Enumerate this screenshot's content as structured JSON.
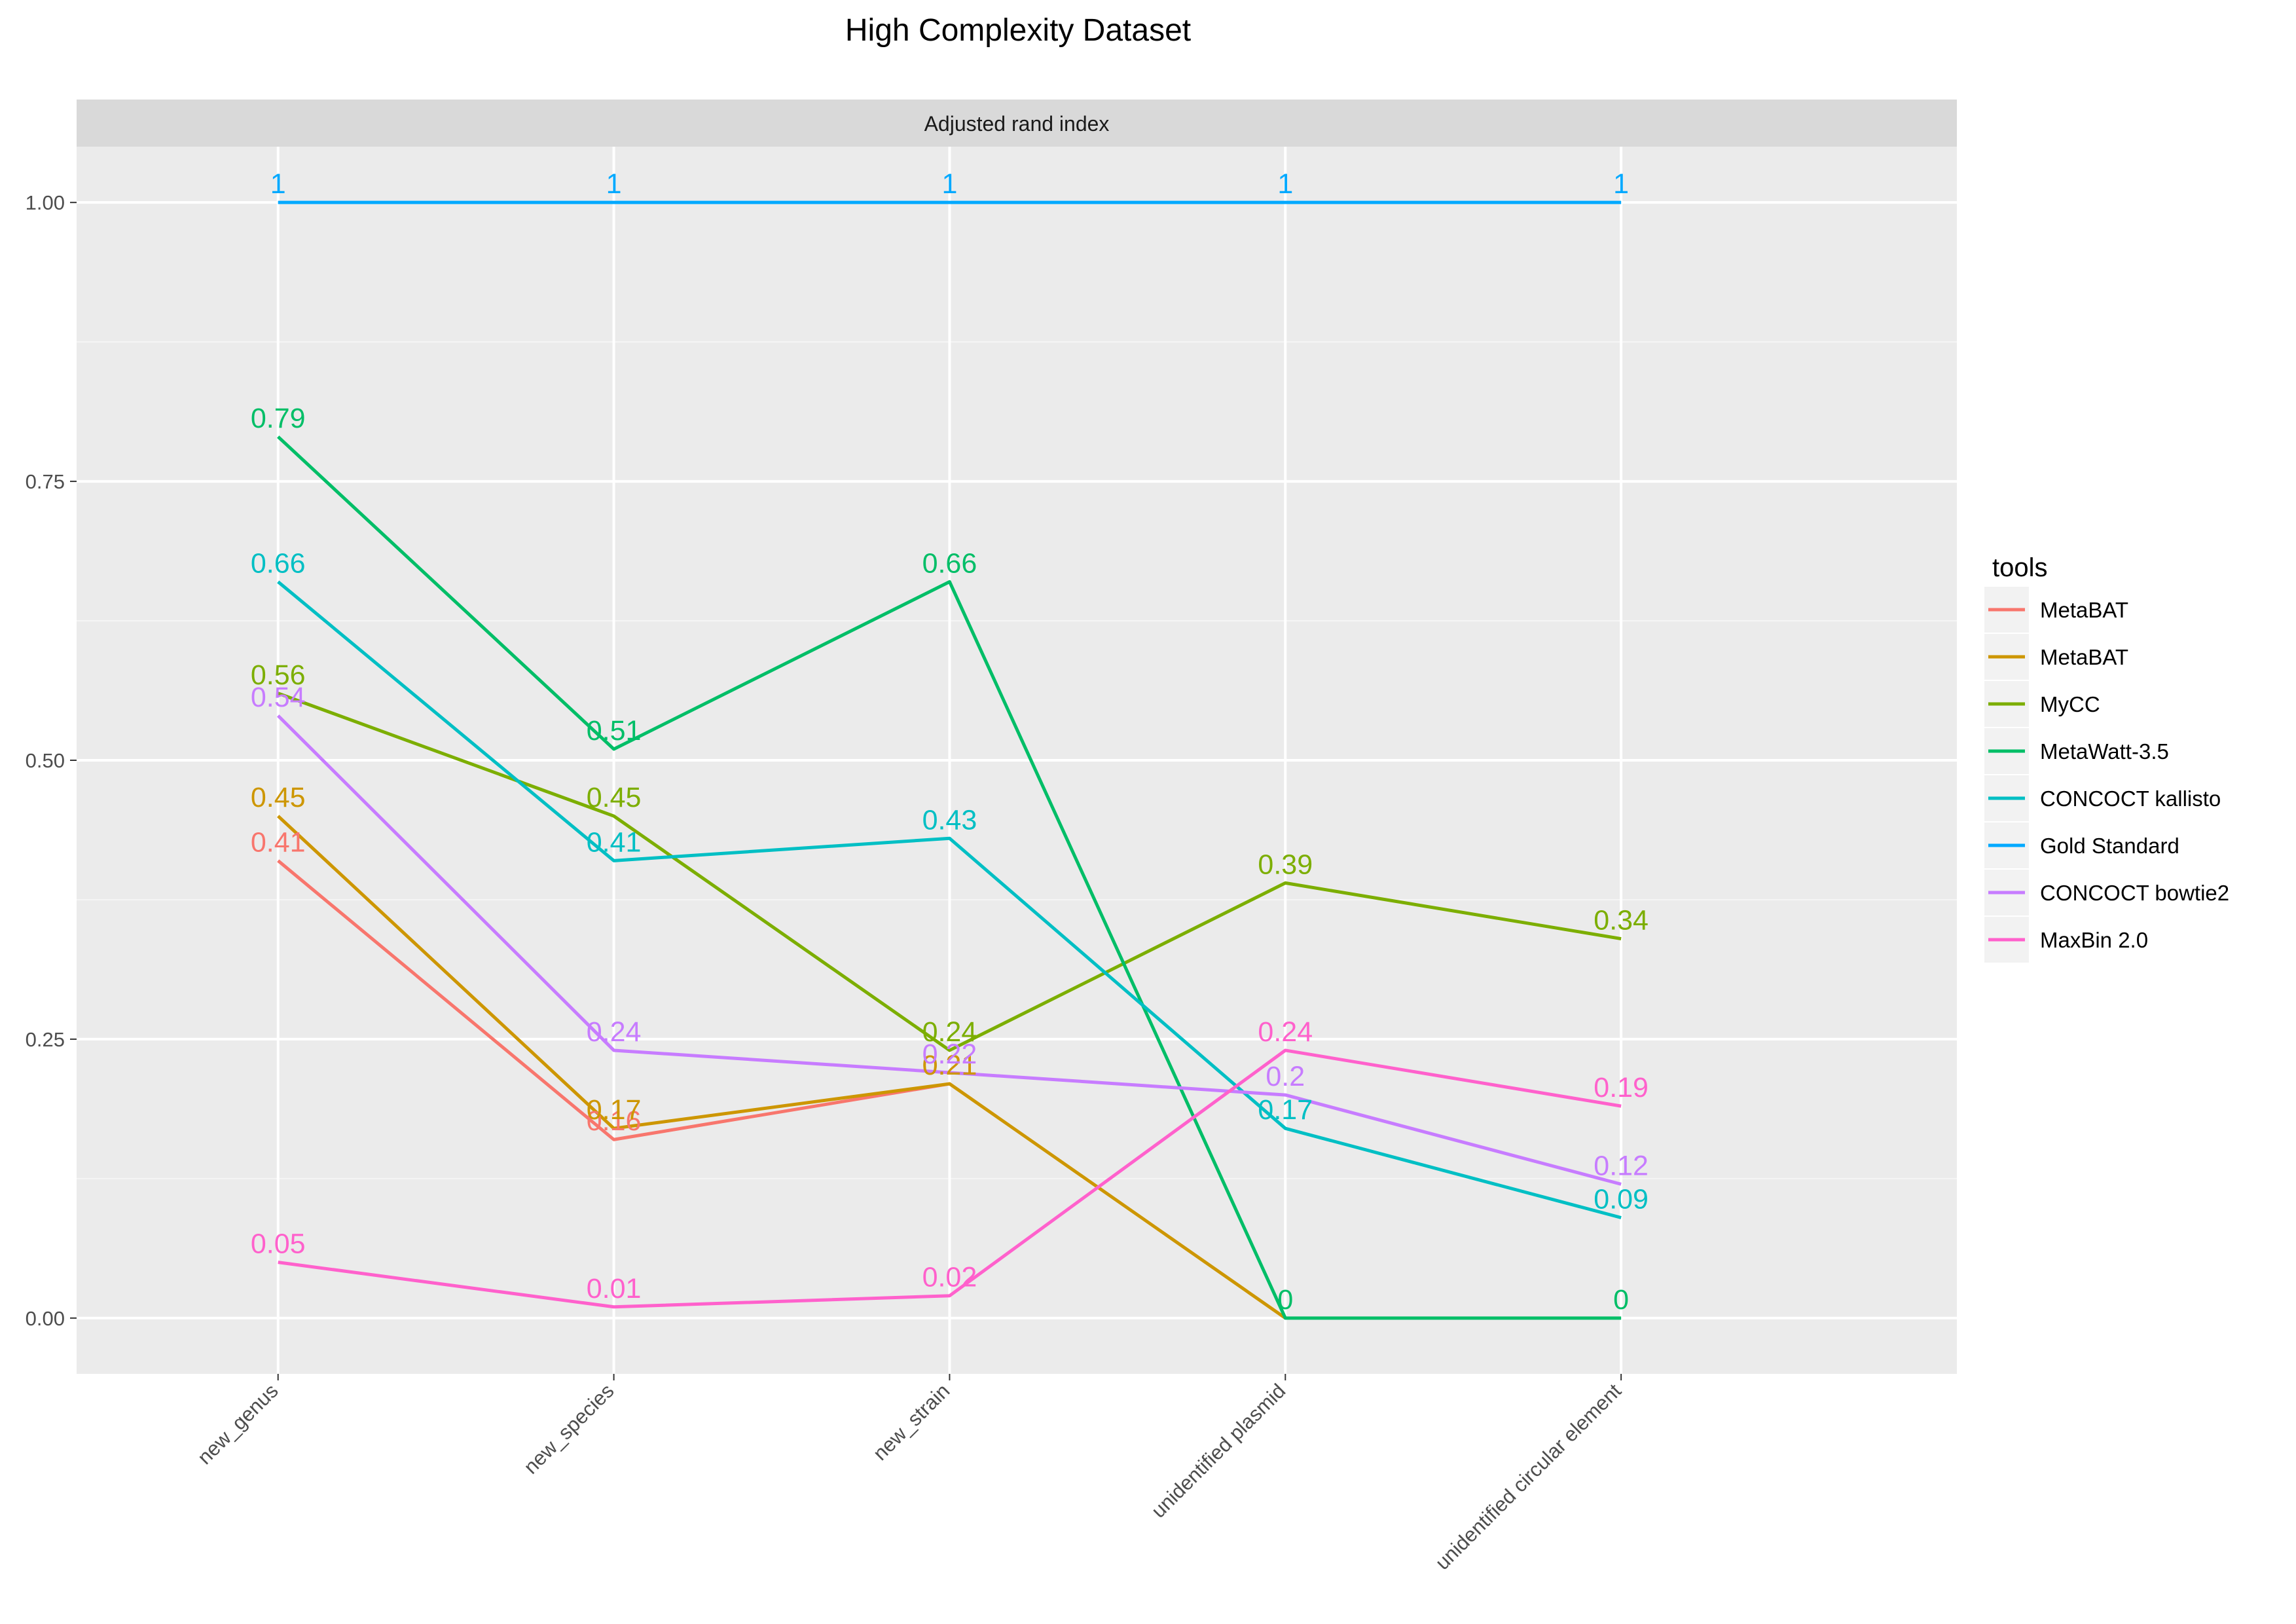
{
  "chart_data": {
    "type": "line",
    "title": "High Complexity Dataset",
    "facet_label": "Adjusted rand index",
    "xlabel": "",
    "ylabel": "",
    "categories": [
      "new_genus",
      "new_species",
      "new_strain",
      "unidentified plasmid",
      "unidentified circular element"
    ],
    "ylim": [
      -0.05,
      1.05
    ],
    "yticks": [
      0.0,
      0.25,
      0.5,
      0.75,
      1.0
    ],
    "ytick_labels": [
      "0.00",
      "0.25",
      "0.50",
      "0.75",
      "1.00"
    ],
    "grid": true,
    "legend_title": "tools",
    "legend_position": "right",
    "series": [
      {
        "name": "MetaBAT",
        "color": "#F8766D",
        "values": [
          0.41,
          0.16,
          0.21,
          null,
          null
        ],
        "labels": [
          "0.41",
          "0.16",
          "0.21",
          "",
          ""
        ]
      },
      {
        "name": "MetaBAT",
        "color": "#CD9600",
        "values": [
          0.45,
          0.17,
          0.21,
          0,
          null
        ],
        "labels": [
          "0.45",
          "0.17",
          "0.21",
          "",
          ""
        ]
      },
      {
        "name": "MyCC",
        "color": "#7CAE00",
        "values": [
          0.56,
          0.45,
          0.24,
          0.39,
          0.34
        ],
        "labels": [
          "0.56",
          "0.45",
          "0.24",
          "0.39",
          "0.34"
        ]
      },
      {
        "name": "MetaWatt-3.5",
        "color": "#00BE67",
        "values": [
          0.79,
          0.51,
          0.66,
          0,
          0
        ],
        "labels": [
          "0.79",
          "0.51",
          "0.66",
          "0",
          "0"
        ]
      },
      {
        "name": "CONCOCT kallisto",
        "color": "#00BFC4",
        "values": [
          0.66,
          0.41,
          0.43,
          0.17,
          0.09
        ],
        "labels": [
          "0.66",
          "0.41",
          "0.43",
          "0.17",
          "0.09"
        ]
      },
      {
        "name": "Gold Standard",
        "color": "#00A9FF",
        "values": [
          1,
          1,
          1,
          1,
          1
        ],
        "labels": [
          "1",
          "1",
          "1",
          "1",
          "1"
        ]
      },
      {
        "name": "CONCOCT bowtie2",
        "color": "#C77CFF",
        "values": [
          0.54,
          0.24,
          0.22,
          0.2,
          0.12
        ],
        "labels": [
          "0.54",
          "0.24",
          "0.22",
          "0.2",
          "0.12"
        ]
      },
      {
        "name": "MaxBin 2.0",
        "color": "#FF61CC",
        "values": [
          0.05,
          0.01,
          0.02,
          0.24,
          0.19
        ],
        "labels": [
          "0.05",
          "0.01",
          "0.02",
          "0.24",
          "0.19"
        ]
      }
    ]
  }
}
